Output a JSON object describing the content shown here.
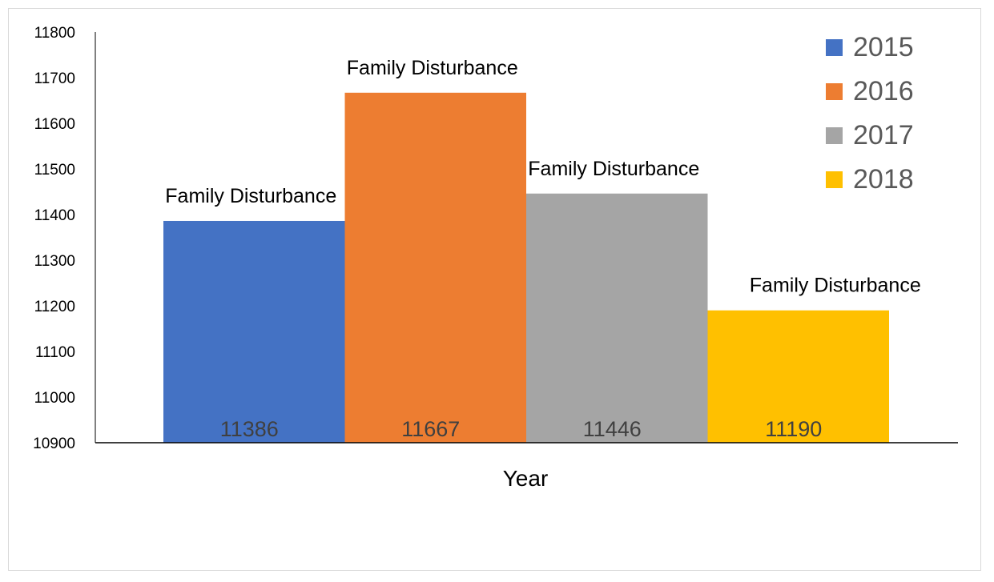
{
  "chart_data": {
    "type": "bar",
    "title": "",
    "xlabel": "Year",
    "ylabel": "",
    "ylim": [
      10900,
      11800
    ],
    "yticks": [
      10900,
      11000,
      11100,
      11200,
      11300,
      11400,
      11500,
      11600,
      11700,
      11800
    ],
    "categories": [
      "2015",
      "2016",
      "2017",
      "2018"
    ],
    "values": [
      11386,
      11667,
      11446,
      11190
    ],
    "value_labels": [
      "11386",
      "11667",
      "11446",
      "11190"
    ],
    "bar_labels": [
      "Family Disturbance",
      "Family Disturbance",
      "Family Disturbance",
      "Family Disturbance"
    ],
    "colors": [
      "#4472c4",
      "#ed7d31",
      "#a5a5a5",
      "#ffc000"
    ],
    "legend": {
      "placement": "top-right",
      "entries": [
        "2015",
        "2016",
        "2017",
        "2018"
      ]
    },
    "grid": false
  }
}
